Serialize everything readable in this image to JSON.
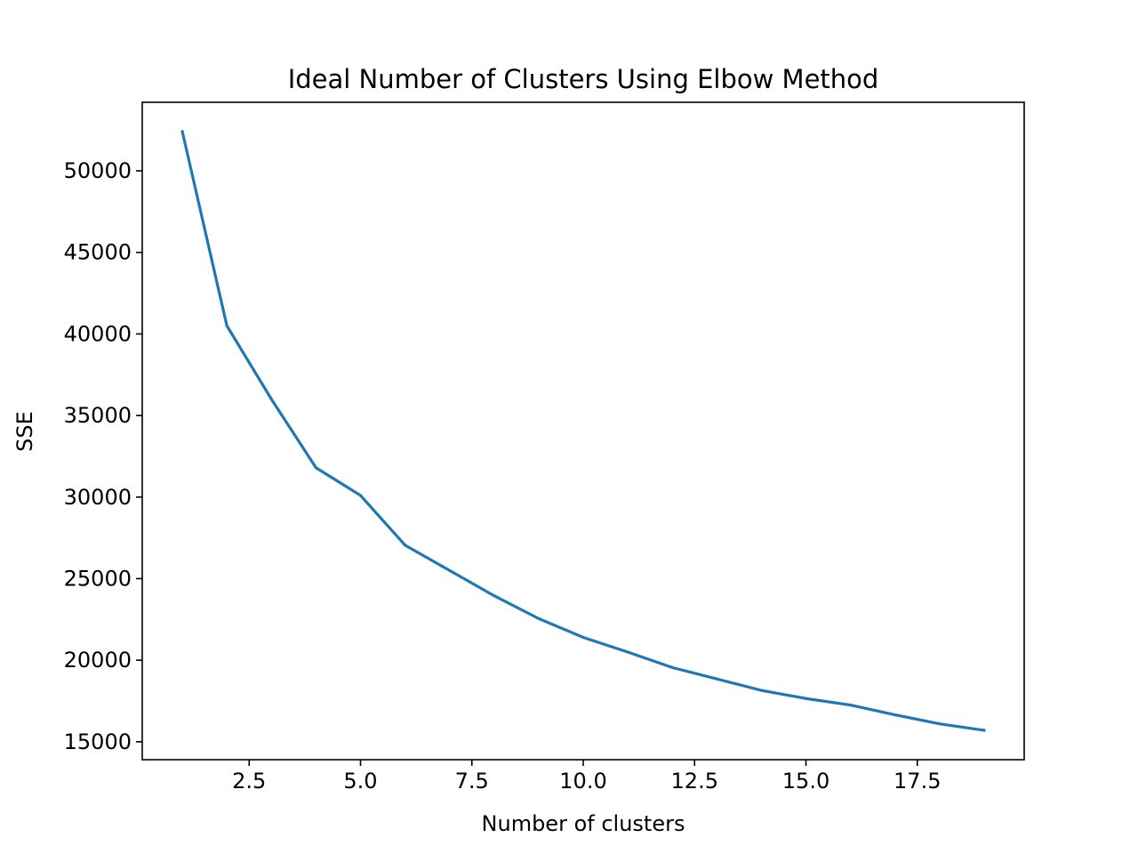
{
  "chart_data": {
    "type": "line",
    "title": "Ideal Number of Clusters Using Elbow Method",
    "xlabel": "Number of clusters",
    "ylabel": "SSE",
    "xlim": [
      0.1,
      19.9
    ],
    "ylim": [
      13900,
      54200
    ],
    "x_ticks": [
      2.5,
      5.0,
      7.5,
      10.0,
      12.5,
      15.0,
      17.5
    ],
    "x_tick_labels": [
      "2.5",
      "5.0",
      "7.5",
      "10.0",
      "12.5",
      "15.0",
      "17.5"
    ],
    "y_ticks": [
      15000,
      20000,
      25000,
      30000,
      35000,
      40000,
      45000,
      50000
    ],
    "y_tick_labels": [
      "15000",
      "20000",
      "25000",
      "30000",
      "35000",
      "40000",
      "45000",
      "50000"
    ],
    "grid": false,
    "legend": "none",
    "series": [
      {
        "color": "#1f77b4",
        "x": [
          1,
          2,
          3,
          4,
          5,
          6,
          7,
          8,
          9,
          10,
          11,
          12,
          13,
          14,
          15,
          16,
          17,
          18,
          19
        ],
        "values": [
          52400,
          40500,
          36000,
          31800,
          30100,
          27050,
          25500,
          23950,
          22550,
          21400,
          20500,
          19550,
          18850,
          18150,
          17650,
          17250,
          16650,
          16100,
          15700
        ]
      }
    ]
  }
}
